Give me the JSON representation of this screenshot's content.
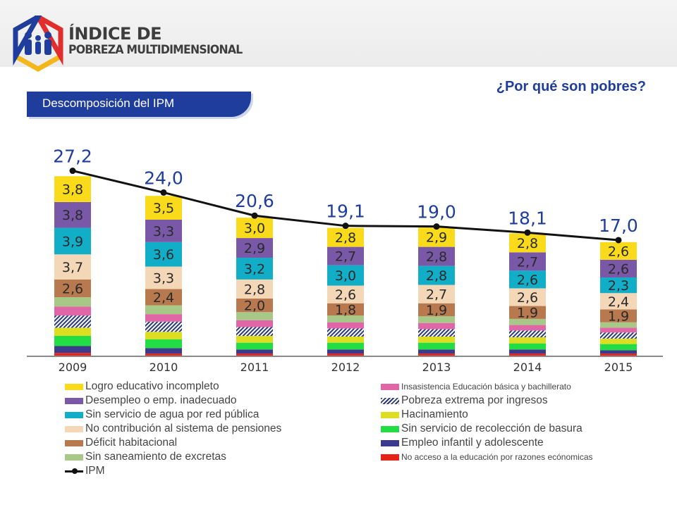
{
  "header": {
    "brand_line1": "ÍNDICE DE",
    "brand_line2": "POBREZA MULTIDIMENSIONAL",
    "question": "¿Por qué son pobres?",
    "section_tab": "Descomposición del IPM"
  },
  "chart_data": {
    "type": "bar",
    "stacked": true,
    "categories": [
      "2009",
      "2010",
      "2011",
      "2012",
      "2013",
      "2014",
      "2015"
    ],
    "ipm": {
      "name": "IPM",
      "values": [
        27.2,
        24.0,
        20.6,
        19.1,
        19.0,
        18.1,
        17.0
      ],
      "labels": [
        "27,2",
        "24,0",
        "20,6",
        "19,1",
        "19,0",
        "18,1",
        "17,0"
      ]
    },
    "series": [
      {
        "name": "No acceso a la educación por razones ecónomicas",
        "color": "#e5231b",
        "values": [
          0.4,
          0.3,
          0.3,
          0.3,
          0.3,
          0.3,
          0.3
        ],
        "labels": [
          "",
          "",
          "",
          "",
          "",
          "",
          ""
        ]
      },
      {
        "name": "Empleo infantil y adolescente",
        "color": "#3b3a8c",
        "values": [
          1.0,
          0.8,
          0.6,
          0.6,
          0.6,
          0.6,
          0.5
        ],
        "labels": [
          "",
          "",
          "",
          "",
          "",
          "",
          ""
        ]
      },
      {
        "name": "Sin servicio de recolección de basura",
        "color": "#22dd44",
        "values": [
          1.5,
          1.3,
          1.0,
          1.0,
          1.0,
          0.9,
          0.9
        ],
        "labels": [
          "",
          "",
          "",
          "",
          "",
          "",
          ""
        ]
      },
      {
        "name": "Hacinamiento",
        "color": "#dddd22",
        "values": [
          1.2,
          1.1,
          1.0,
          0.9,
          0.9,
          0.9,
          0.8
        ],
        "labels": [
          "",
          "",
          "",
          "",
          "",
          "",
          ""
        ]
      },
      {
        "name": "Pobreza extrema por ingresos",
        "color": "#2b3a78",
        "hatched": true,
        "values": [
          1.8,
          1.5,
          1.3,
          1.2,
          1.1,
          1.0,
          0.9
        ],
        "labels": [
          "",
          "",
          "",
          "",
          "",
          "",
          ""
        ]
      },
      {
        "name": "Insasistencia Educación básica y bachillerato",
        "color": "#e066a8",
        "values": [
          1.3,
          1.1,
          1.0,
          0.9,
          0.9,
          0.8,
          0.7
        ],
        "labels": [
          "",
          "",
          "",
          "",
          "",
          "",
          ""
        ]
      },
      {
        "name": "Sin saneamiento de excretas",
        "color": "#a8c888",
        "values": [
          1.4,
          1.3,
          1.2,
          1.0,
          1.0,
          0.9,
          0.8
        ],
        "labels": [
          "",
          "",
          "",
          "",
          "",
          "",
          ""
        ]
      },
      {
        "name": "Déficit habitacional",
        "color": "#b8794f",
        "values": [
          2.6,
          2.4,
          2.0,
          1.8,
          1.9,
          1.9,
          1.9
        ],
        "labels": [
          "2,6",
          "2,4",
          "2,0",
          "1,8",
          "1,9",
          "1,9",
          "1,9"
        ]
      },
      {
        "name": "No contribución al sistema de pensiones",
        "color": "#f3d7b6",
        "values": [
          3.7,
          3.3,
          2.8,
          2.6,
          2.7,
          2.6,
          2.4
        ],
        "labels": [
          "3,7",
          "3,3",
          "2,8",
          "2,6",
          "2,7",
          "2,6",
          "2,4"
        ]
      },
      {
        "name": "Sin servicio de agua por red pública",
        "color": "#12aec8",
        "values": [
          3.9,
          3.6,
          3.2,
          3.0,
          2.8,
          2.6,
          2.3
        ],
        "labels": [
          "3,9",
          "3,6",
          "3,2",
          "3,0",
          "2,8",
          "2,6",
          "2,3"
        ]
      },
      {
        "name": "Desempleo o emp. inadecuado",
        "color": "#7a58a8",
        "values": [
          3.8,
          3.3,
          2.9,
          2.7,
          2.8,
          2.7,
          2.6
        ],
        "labels": [
          "3,8",
          "3,3",
          "2,9",
          "2,7",
          "2,8",
          "2,7",
          "2,6"
        ]
      },
      {
        "name": "Logro educativo incompleto",
        "color": "#f9db1b",
        "values": [
          3.8,
          3.5,
          3.0,
          2.8,
          2.9,
          2.8,
          2.6
        ],
        "labels": [
          "3,8",
          "3,5",
          "3,0",
          "2,8",
          "2,9",
          "2,8",
          "2,6"
        ]
      }
    ],
    "legend_left": [
      "Logro educativo incompleto",
      "Desempleo o emp. inadecuado",
      "Sin servicio de agua por red pública",
      "No contribución al sistema de pensiones",
      "Déficit habitacional",
      "Sin saneamiento de excretas",
      "IPM"
    ],
    "legend_right": [
      "Insasistencia Educación básica y bachillerato",
      "Pobreza extrema por ingresos",
      "Hacinamiento",
      "Sin servicio de recolección de basura",
      "Empleo infantil y adolescente",
      "No acceso a la educación por razones ecónomicas"
    ],
    "ylim": [
      0,
      28
    ],
    "grid": false,
    "legend_position": "bottom"
  }
}
